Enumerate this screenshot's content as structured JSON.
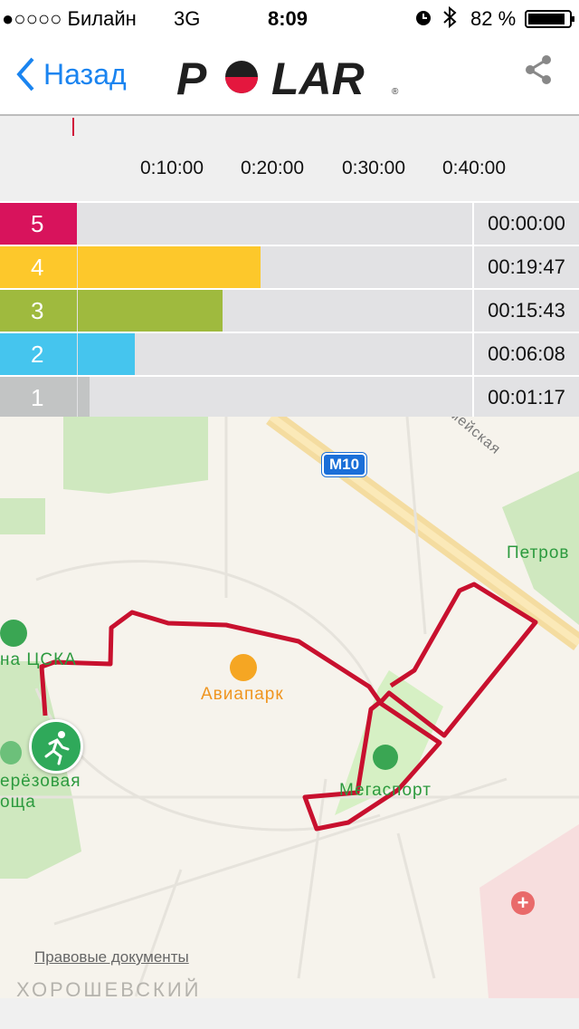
{
  "status_bar": {
    "carrier": "●○○○○ Билайн",
    "network": "3G",
    "time": "8:09",
    "battery": "82 %",
    "icons": [
      "alarm-icon",
      "bluetooth-icon",
      "battery-icon"
    ]
  },
  "nav": {
    "back_label": "Назад",
    "logo": "POLAR",
    "share_icon": "share-icon"
  },
  "axis": {
    "ticks": [
      "0:10:00",
      "0:20:00",
      "0:30:00",
      "0:40:00"
    ]
  },
  "zones": [
    {
      "zone": "5",
      "time": "00:00:00",
      "seconds": 0,
      "color": "#d8135c"
    },
    {
      "zone": "4",
      "time": "00:19:47",
      "seconds": 1187,
      "color": "#fdc82b"
    },
    {
      "zone": "3",
      "time": "00:15:43",
      "seconds": 943,
      "color": "#9fba3e"
    },
    {
      "zone": "2",
      "time": "00:06:08",
      "seconds": 368,
      "color": "#45c5ee"
    },
    {
      "zone": "1",
      "time": "00:01:17",
      "seconds": 77,
      "color": "#c2c4c4"
    }
  ],
  "map": {
    "road_badge": "M10",
    "street": "мейская",
    "places": [
      "на ЦСКА",
      "Авиапарк",
      "ерёзовая",
      "оща",
      "Мегаспорт",
      "Петров",
      "ХОРОШЕВСКИЙ"
    ],
    "legal_link": "Правовые документы",
    "route_color": "#c8102e"
  }
}
